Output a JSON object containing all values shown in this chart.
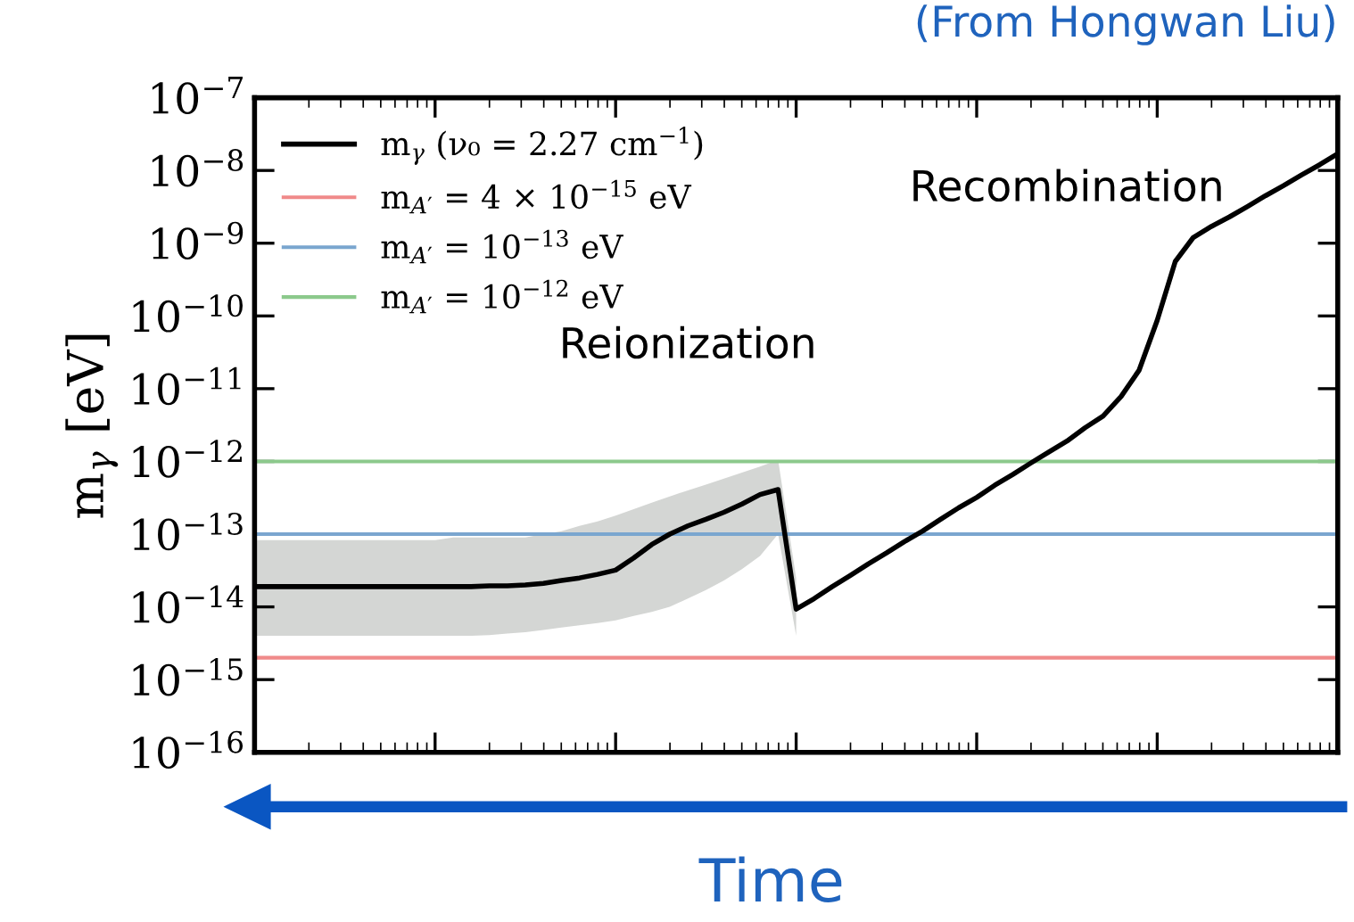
{
  "chart_data": {
    "type": "line",
    "title": "(From Hongwan Liu)",
    "xlabel": "Time",
    "ylabel": "m$_{γ}$ [eV]",
    "log": "y",
    "legend": "top left",
    "tick_labels": "y",
    "categories": [
      null,
      null,
      null,
      null,
      null,
      null,
      null,
      null,
      null,
      null,
      null,
      null,
      null,
      null,
      null,
      null,
      null,
      null,
      null,
      null,
      null,
      null,
      null,
      null,
      null,
      null,
      null,
      null,
      null,
      null,
      null,
      null,
      null,
      null,
      null,
      null,
      null,
      null,
      null,
      null,
      null,
      null,
      null,
      null,
      null,
      null,
      null,
      null,
      null,
      null,
      null,
      null,
      null,
      null,
      null,
      null,
      null,
      null,
      null,
      null,
      null
    ],
    "ylim": [
      1e-16,
      1e-07
    ],
    "yticks": [
      {
        "value": 1e-16,
        "label": "10$^{−16}$"
      },
      {
        "value": 1e-15,
        "label": "10$^{−15}$"
      },
      {
        "value": 1e-14,
        "label": "10$^{−14}$"
      },
      {
        "value": 1e-13,
        "label": "10$^{−13}$"
      },
      {
        "value": 1e-12,
        "label": "10$^{−12}$"
      },
      {
        "value": 1e-11,
        "label": "10$^{−11}$"
      },
      {
        "value": 1e-10,
        "label": "10$^{−10}$"
      },
      {
        "value": 1e-09,
        "label": "10$^{−9}$"
      },
      {
        "value": 1e-08,
        "label": "10$^{−8}$"
      },
      {
        "value": 1e-07,
        "label": "10$^{−7}$"
      }
    ],
    "annotations": [
      "Reionization",
      "Recombination"
    ],
    "series": [
      {
        "name": "m$_{γ}$ (ν₀ = 2.27 cm$^{−1}$)",
        "color": "#000000",
        "values": [
          1.9e-14,
          1.9e-14,
          1.9e-14,
          1.9e-14,
          1.9e-14,
          1.9e-14,
          1.9e-14,
          1.9e-14,
          1.9e-14,
          1.9e-14,
          1.9e-14,
          1.9e-14,
          1.9e-14,
          1.95e-14,
          1.95e-14,
          2e-14,
          2.1e-14,
          2.3e-14,
          2.5e-14,
          2.8e-14,
          3.2e-14,
          4.7e-14,
          7.2e-14,
          1e-13,
          1.3e-13,
          1.6e-13,
          2e-13,
          2.6e-13,
          3.5e-13,
          4.1e-13,
          9.3e-15,
          1.3e-14,
          1.9e-14,
          2.7e-14,
          3.9e-14,
          5.5e-14,
          7.9e-14,
          1.1e-13,
          1.6e-13,
          2.3e-13,
          3.2e-13,
          4.7e-13,
          6.6e-13,
          9.5e-13,
          1.35e-12,
          1.9e-12,
          2.9e-12,
          4.2e-12,
          7.8e-12,
          1.8e-11,
          8.7e-11,
          5.6e-10,
          1.2e-09,
          1.7e-09,
          2.3e-09,
          3.2e-09,
          4.5e-09,
          6.2e-09,
          8.7e-09,
          1.2e-08,
          1.7e-08
        ],
        "lower": [
          4e-15,
          4e-15,
          4e-15,
          4e-15,
          4e-15,
          4e-15,
          4e-15,
          4e-15,
          4e-15,
          4e-15,
          4e-15,
          4e-15,
          4e-15,
          4.1e-15,
          4.3e-15,
          4.5e-15,
          4.8e-15,
          5.2e-15,
          5.6e-15,
          6e-15,
          6.5e-15,
          7.5e-15,
          8.5e-15,
          1e-14,
          1.3e-14,
          1.7e-14,
          2.3e-14,
          3.3e-14,
          5e-14,
          1e-13,
          4e-15,
          null,
          null,
          null,
          null,
          null,
          null,
          null,
          null,
          null,
          null,
          null,
          null,
          null,
          null,
          null,
          null,
          null,
          null,
          null,
          null,
          null,
          null,
          null,
          null,
          null,
          null,
          null,
          null,
          null,
          null
        ],
        "upper": [
          8.3e-14,
          8.3e-14,
          8.3e-14,
          8.3e-14,
          8.3e-14,
          8.3e-14,
          8.3e-14,
          8.3e-14,
          8.3e-14,
          8.3e-14,
          8.3e-14,
          9e-14,
          9e-14,
          9e-14,
          9e-14,
          9e-14,
          1e-13,
          1.1e-13,
          1.3e-13,
          1.5e-13,
          1.8e-13,
          2.2e-13,
          2.7e-13,
          3.3e-13,
          4e-13,
          4.8e-13,
          5.8e-13,
          7e-13,
          8.5e-13,
          1.05e-12,
          2.5e-14,
          null,
          null,
          null,
          null,
          null,
          null,
          null,
          null,
          null,
          null,
          null,
          null,
          null,
          null,
          null,
          null,
          null,
          null,
          null,
          null,
          null,
          null,
          null,
          null,
          null,
          null,
          null,
          null,
          null,
          null
        ]
      },
      {
        "name": "m$_{A′}$ = 4 × 10$^{−15}$ eV",
        "color": "#f08a8a",
        "values": [
          2e-15,
          2e-15,
          2e-15,
          2e-15,
          2e-15,
          2e-15,
          2e-15,
          2e-15,
          2e-15,
          2e-15,
          2e-15,
          2e-15,
          2e-15,
          2e-15,
          2e-15,
          2e-15,
          2e-15,
          2e-15,
          2e-15,
          2e-15,
          2e-15,
          2e-15,
          2e-15,
          2e-15,
          2e-15,
          2e-15,
          2e-15,
          2e-15,
          2e-15,
          2e-15,
          2e-15,
          2e-15,
          2e-15,
          2e-15,
          2e-15,
          2e-15,
          2e-15,
          2e-15,
          2e-15,
          2e-15,
          2e-15,
          2e-15,
          2e-15,
          2e-15,
          2e-15,
          2e-15,
          2e-15,
          2e-15,
          2e-15,
          2e-15,
          2e-15,
          2e-15,
          2e-15,
          2e-15,
          2e-15,
          2e-15,
          2e-15,
          2e-15,
          2e-15,
          2e-15,
          2e-15
        ]
      },
      {
        "name": "m$_{A′}$ = 10$^{−13}$ eV",
        "color": "#7aa6cf",
        "values": [
          1e-13,
          1e-13,
          1e-13,
          1e-13,
          1e-13,
          1e-13,
          1e-13,
          1e-13,
          1e-13,
          1e-13,
          1e-13,
          1e-13,
          1e-13,
          1e-13,
          1e-13,
          1e-13,
          1e-13,
          1e-13,
          1e-13,
          1e-13,
          1e-13,
          1e-13,
          1e-13,
          1e-13,
          1e-13,
          1e-13,
          1e-13,
          1e-13,
          1e-13,
          1e-13,
          1e-13,
          1e-13,
          1e-13,
          1e-13,
          1e-13,
          1e-13,
          1e-13,
          1e-13,
          1e-13,
          1e-13,
          1e-13,
          1e-13,
          1e-13,
          1e-13,
          1e-13,
          1e-13,
          1e-13,
          1e-13,
          1e-13,
          1e-13,
          1e-13,
          1e-13,
          1e-13,
          1e-13,
          1e-13,
          1e-13,
          1e-13,
          1e-13,
          1e-13,
          1e-13,
          1e-13
        ]
      },
      {
        "name": "m$_{A′}$ = 10$^{−12}$ eV",
        "color": "#8cc98c",
        "values": [
          1e-12,
          1e-12,
          1e-12,
          1e-12,
          1e-12,
          1e-12,
          1e-12,
          1e-12,
          1e-12,
          1e-12,
          1e-12,
          1e-12,
          1e-12,
          1e-12,
          1e-12,
          1e-12,
          1e-12,
          1e-12,
          1e-12,
          1e-12,
          1e-12,
          1e-12,
          1e-12,
          1e-12,
          1e-12,
          1e-12,
          1e-12,
          1e-12,
          1e-12,
          1e-12,
          1e-12,
          1e-12,
          1e-12,
          1e-12,
          1e-12,
          1e-12,
          1e-12,
          1e-12,
          1e-12,
          1e-12,
          1e-12,
          1e-12,
          1e-12,
          1e-12,
          1e-12,
          1e-12,
          1e-12,
          1e-12,
          1e-12,
          1e-12,
          1e-12,
          1e-12,
          1e-12,
          1e-12,
          1e-12,
          1e-12,
          1e-12,
          1e-12,
          1e-12,
          1e-12,
          1e-12
        ]
      }
    ]
  }
}
